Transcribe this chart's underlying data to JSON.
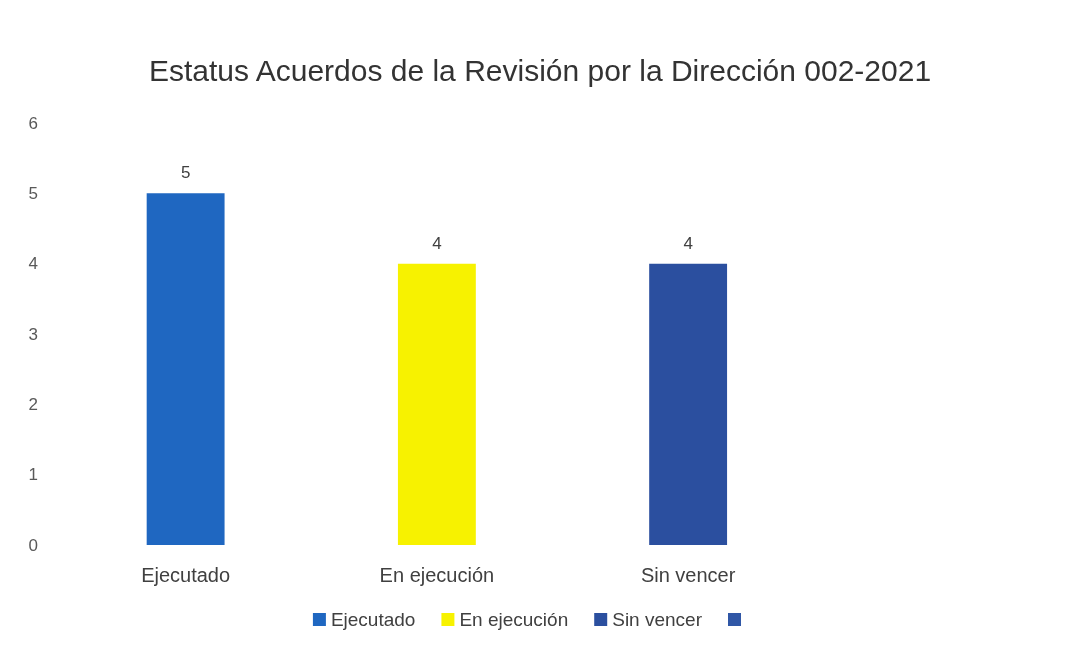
{
  "chart_data": {
    "type": "bar",
    "title": "Estatus Acuerdos de la Revisión por la Dirección 002-2021",
    "categories": [
      "Ejecutado",
      "En ejecución",
      "Sin vencer",
      null
    ],
    "series": [
      {
        "name": "Ejecutado",
        "color": "#1f67c1",
        "values": [
          5,
          null,
          null,
          null
        ]
      },
      {
        "name": "En ejecución",
        "color": "#f7f200",
        "values": [
          null,
          4,
          null,
          null
        ]
      },
      {
        "name": "Sin vencer",
        "color": "#2b4f9f",
        "values": [
          null,
          null,
          4,
          null
        ]
      },
      {
        "color": "#3057a6",
        "values": [
          null,
          null,
          null,
          null
        ]
      }
    ],
    "ylim": [
      0,
      6
    ],
    "yticks": [
      0,
      1,
      2,
      3,
      4,
      5,
      6
    ],
    "data_labels": true,
    "legend": "bottom"
  }
}
